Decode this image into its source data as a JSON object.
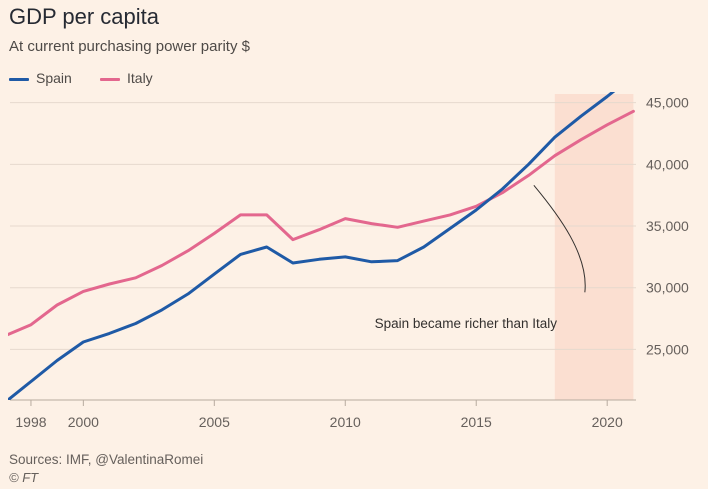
{
  "chart_data": {
    "type": "line",
    "title": "GDP per capita",
    "subtitle": "At current purchasing power parity $",
    "x": [
      1997,
      1998,
      1999,
      2000,
      2001,
      2002,
      2003,
      2004,
      2005,
      2006,
      2007,
      2008,
      2009,
      2010,
      2011,
      2012,
      2013,
      2014,
      2015,
      2016,
      2017,
      2018,
      2019,
      2020,
      2021
    ],
    "series": [
      {
        "name": "Spain",
        "color": "#1f5aa6",
        "values": [
          20700,
          22400,
          24100,
          25600,
          26300,
          27100,
          28200,
          29500,
          31100,
          32700,
          33300,
          32000,
          32300,
          32500,
          32100,
          32200,
          33300,
          34800,
          36300,
          38000,
          40000,
          42200,
          43900,
          45500,
          47200
        ]
      },
      {
        "name": "Italy",
        "color": "#e3678e",
        "values": [
          26100,
          27000,
          28600,
          29700,
          30300,
          30800,
          31800,
          33000,
          34400,
          35900,
          35900,
          33900,
          34700,
          35600,
          35200,
          34900,
          35400,
          35900,
          36600,
          37700,
          39100,
          40700,
          42000,
          43200,
          44300
        ]
      }
    ],
    "x_tick_labels": [
      {
        "x": 1998,
        "label": "1998"
      },
      {
        "x": 2000,
        "label": "2000"
      },
      {
        "x": 2005,
        "label": "2005"
      },
      {
        "x": 2010,
        "label": "2010"
      },
      {
        "x": 2015,
        "label": "2015"
      },
      {
        "x": 2020,
        "label": "2020"
      }
    ],
    "y_ticks": [
      {
        "value": 25000,
        "label": "25,000"
      },
      {
        "value": 30000,
        "label": "30,000"
      },
      {
        "value": 35000,
        "label": "35,000"
      },
      {
        "value": 40000,
        "label": "40,000"
      },
      {
        "value": 45000,
        "label": "45,000"
      }
    ],
    "xlim": [
      1997.2,
      2021.1
    ],
    "ylim": [
      20900,
      45700
    ],
    "y_axis_position": "right",
    "grid": true,
    "legend_position": "top-left",
    "highlight_region": {
      "x_start": 2018,
      "x_end": 2021,
      "color": "#fbdfd1"
    },
    "annotation": {
      "text": "Spain became richer than Italy",
      "x": 2017.2,
      "y": 38300
    },
    "source": "Sources: IMF, @ValentinaRomei",
    "copyright": "© FT"
  }
}
